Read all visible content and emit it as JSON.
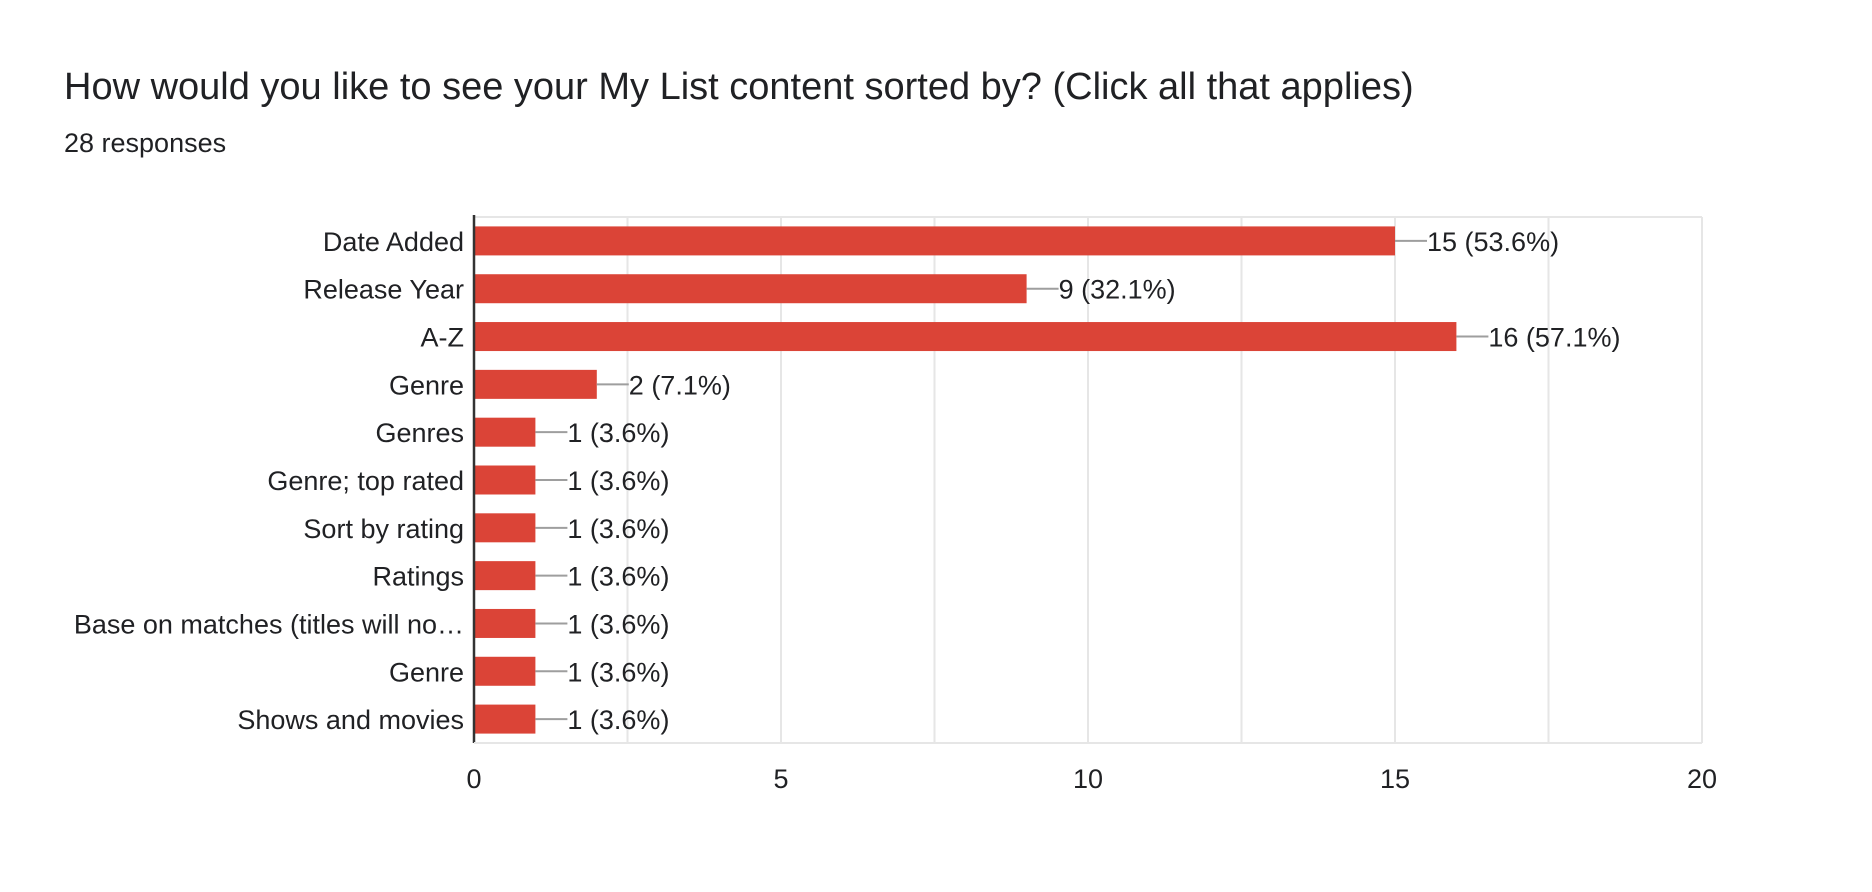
{
  "header": {
    "title": "How would you like to see your My List content sorted by? (Click all that applies)",
    "subtitle": "28 responses"
  },
  "colors": {
    "bar": "#db4437",
    "grid": "#e6e6e6",
    "axis": "#333333",
    "leader": "#9e9e9e",
    "text": "#202124"
  },
  "chart_data": {
    "type": "bar",
    "orientation": "horizontal",
    "title": "How would you like to see your My List content sorted by? (Click all that applies)",
    "subtitle": "28 responses",
    "categories": [
      "Date Added",
      "Release Year",
      "A-Z",
      "Genre",
      "Genres",
      "Genre; top rated",
      "Sort by rating",
      "Ratings",
      "Base on matches (titles will no…",
      "Genre",
      "Shows and movies"
    ],
    "values": [
      15,
      9,
      16,
      2,
      1,
      1,
      1,
      1,
      1,
      1,
      1
    ],
    "data_labels": [
      "15 (53.6%)",
      "9 (32.1%)",
      "16 (57.1%)",
      "2 (7.1%)",
      "1 (3.6%)",
      "1 (3.6%)",
      "1 (3.6%)",
      "1 (3.6%)",
      "1 (3.6%)",
      "1 (3.6%)",
      "1 (3.6%)"
    ],
    "xlim": [
      0,
      20
    ],
    "xticks": [
      0,
      5,
      10,
      15,
      20
    ],
    "xlabel": "",
    "ylabel": "",
    "grid": true
  }
}
